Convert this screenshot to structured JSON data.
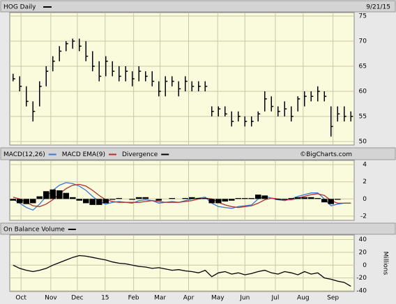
{
  "chart_data": [
    {
      "type": "hlc",
      "title": "HOG Daily",
      "date": "9/21/15",
      "color": "#000000",
      "high": [
        63.5,
        63,
        61,
        58,
        62,
        65,
        67,
        69,
        70,
        70.5,
        70.5,
        70,
        68,
        66,
        67,
        66,
        65,
        65,
        64,
        65,
        64,
        64,
        62,
        63,
        63,
        62,
        63,
        62,
        62,
        62,
        57,
        57,
        57,
        56,
        56,
        55,
        55,
        56,
        60,
        59,
        57,
        58,
        57,
        59,
        60,
        60,
        61,
        60,
        57,
        57,
        57,
        56
      ],
      "low": [
        62,
        60,
        57,
        54,
        57,
        61,
        64,
        66,
        68,
        68.5,
        68,
        66,
        64,
        62,
        63,
        63,
        62,
        62,
        61,
        62,
        62,
        61,
        59,
        59,
        61,
        59,
        60,
        60,
        60,
        60,
        55,
        55,
        55,
        53,
        54,
        53,
        53,
        54,
        56,
        56,
        55,
        55,
        54,
        56,
        57,
        58,
        58,
        58,
        51,
        54,
        54,
        54
      ],
      "close": [
        62.5,
        61,
        58,
        56,
        61,
        64,
        66,
        68,
        69.5,
        70,
        69,
        67,
        65,
        63,
        66,
        64,
        63,
        64,
        62.5,
        64,
        63,
        62,
        60,
        62,
        62,
        60.5,
        62,
        61,
        61,
        61,
        56,
        56.5,
        55.5,
        54,
        55,
        54,
        54,
        55.5,
        58.5,
        57,
        56,
        56.5,
        55,
        58.5,
        59,
        59,
        60,
        59,
        53,
        55.5,
        55,
        55
      ],
      "ylim": [
        49.3,
        75.7
      ],
      "yticks": [
        50,
        55,
        60,
        65,
        70,
        75
      ],
      "xlim": [
        -0.5,
        51.5
      ]
    },
    {
      "type": "line",
      "source": "©BigCharts.com",
      "ylim": [
        -2.5,
        4.5
      ],
      "yticks": [
        -2,
        0,
        2,
        4
      ],
      "xlim": [
        -0.5,
        51.5
      ],
      "series": [
        {
          "name": "MACD(12,26)",
          "color": "#3a78d8",
          "values": [
            0,
            -0.5,
            -1,
            -1.3,
            -0.6,
            0.3,
            1,
            1.6,
            1.9,
            1.8,
            1.5,
            1.0,
            0.3,
            -0.3,
            -0.6,
            -0.4,
            -0.3,
            -0.4,
            -0.5,
            -0.2,
            -0.1,
            -0.2,
            -0.5,
            -0.4,
            -0.3,
            -0.4,
            -0.2,
            0,
            0.1,
            0.2,
            -0.5,
            -0.9,
            -1.0,
            -1.1,
            -0.9,
            -0.8,
            -0.7,
            0,
            0.3,
            0.1,
            -0.1,
            -0.2,
            0,
            0.3,
            0.5,
            0.7,
            0.7,
            0,
            -0.8,
            -0.6,
            -0.5,
            -0.5
          ]
        },
        {
          "name": "MACD EMA(9)",
          "color": "#b03030",
          "values": [
            0.2,
            0,
            -0.4,
            -0.8,
            -0.9,
            -0.6,
            -0.1,
            0.6,
            1.2,
            1.6,
            1.7,
            1.5,
            1.0,
            0.4,
            -0.1,
            -0.3,
            -0.4,
            -0.4,
            -0.4,
            -0.4,
            -0.3,
            -0.2,
            -0.3,
            -0.4,
            -0.4,
            -0.4,
            -0.3,
            -0.2,
            0,
            0.1,
            0,
            -0.4,
            -0.7,
            -0.9,
            -1.0,
            -0.9,
            -0.8,
            -0.5,
            -0.1,
            0.1,
            0,
            -0.1,
            -0.1,
            0.1,
            0.3,
            0.5,
            0.6,
            0.4,
            -0.2,
            -0.5,
            -0.5,
            -0.5
          ]
        },
        {
          "name": "Divergence",
          "color": "#000000",
          "kind": "histogram",
          "values": [
            -0.2,
            -0.5,
            -0.6,
            -0.5,
            0.3,
            0.9,
            1.1,
            1.0,
            0.7,
            0.2,
            -0.2,
            -0.5,
            -0.7,
            -0.7,
            -0.5,
            -0.1,
            0.1,
            0,
            -0.1,
            0.2,
            0.2,
            0,
            -0.2,
            0,
            0.1,
            0,
            0.1,
            0.2,
            0.1,
            0.1,
            -0.5,
            -0.5,
            -0.3,
            -0.2,
            0.1,
            0.1,
            0.1,
            0.5,
            0.4,
            0,
            -0.1,
            -0.1,
            0.1,
            0.2,
            0.2,
            0.2,
            0.1,
            -0.4,
            -0.6,
            -0.1,
            0,
            0
          ]
        }
      ]
    },
    {
      "type": "line",
      "ylabel": "Millions",
      "ylim": [
        -41,
        47
      ],
      "yticks": [
        -40,
        -20,
        0,
        20,
        40
      ],
      "xlim": [
        -0.5,
        51.5
      ],
      "xticks": [
        {
          "value": 1.2,
          "label": "Oct"
        },
        {
          "value": 5.7,
          "label": "Nov"
        },
        {
          "value": 9.7,
          "label": "Dec"
        },
        {
          "value": 13.9,
          "label": "15"
        },
        {
          "value": 18.2,
          "label": "Feb"
        },
        {
          "value": 22.2,
          "label": "Mar"
        },
        {
          "value": 26.5,
          "label": "Apr"
        },
        {
          "value": 30.9,
          "label": "May"
        },
        {
          "value": 35,
          "label": "Jun"
        },
        {
          "value": 39.6,
          "label": "Jul"
        },
        {
          "value": 43.8,
          "label": "Aug"
        },
        {
          "value": 48.3,
          "label": "Sep"
        }
      ],
      "series": [
        {
          "name": "On Balance Volume",
          "color": "#000000",
          "values": [
            0,
            -5,
            -8,
            -10,
            -8,
            -5,
            0,
            4,
            8,
            12,
            15,
            14,
            12,
            10,
            8,
            5,
            3,
            2,
            0,
            -2,
            -3,
            -5,
            -4,
            -6,
            -8,
            -7,
            -9,
            -10,
            -12,
            -8,
            -18,
            -12,
            -10,
            -14,
            -12,
            -15,
            -13,
            -10,
            -8,
            -12,
            -14,
            -10,
            -12,
            -15,
            -10,
            -14,
            -12,
            -20,
            -22,
            -25,
            -27,
            -33
          ]
        }
      ]
    }
  ]
}
